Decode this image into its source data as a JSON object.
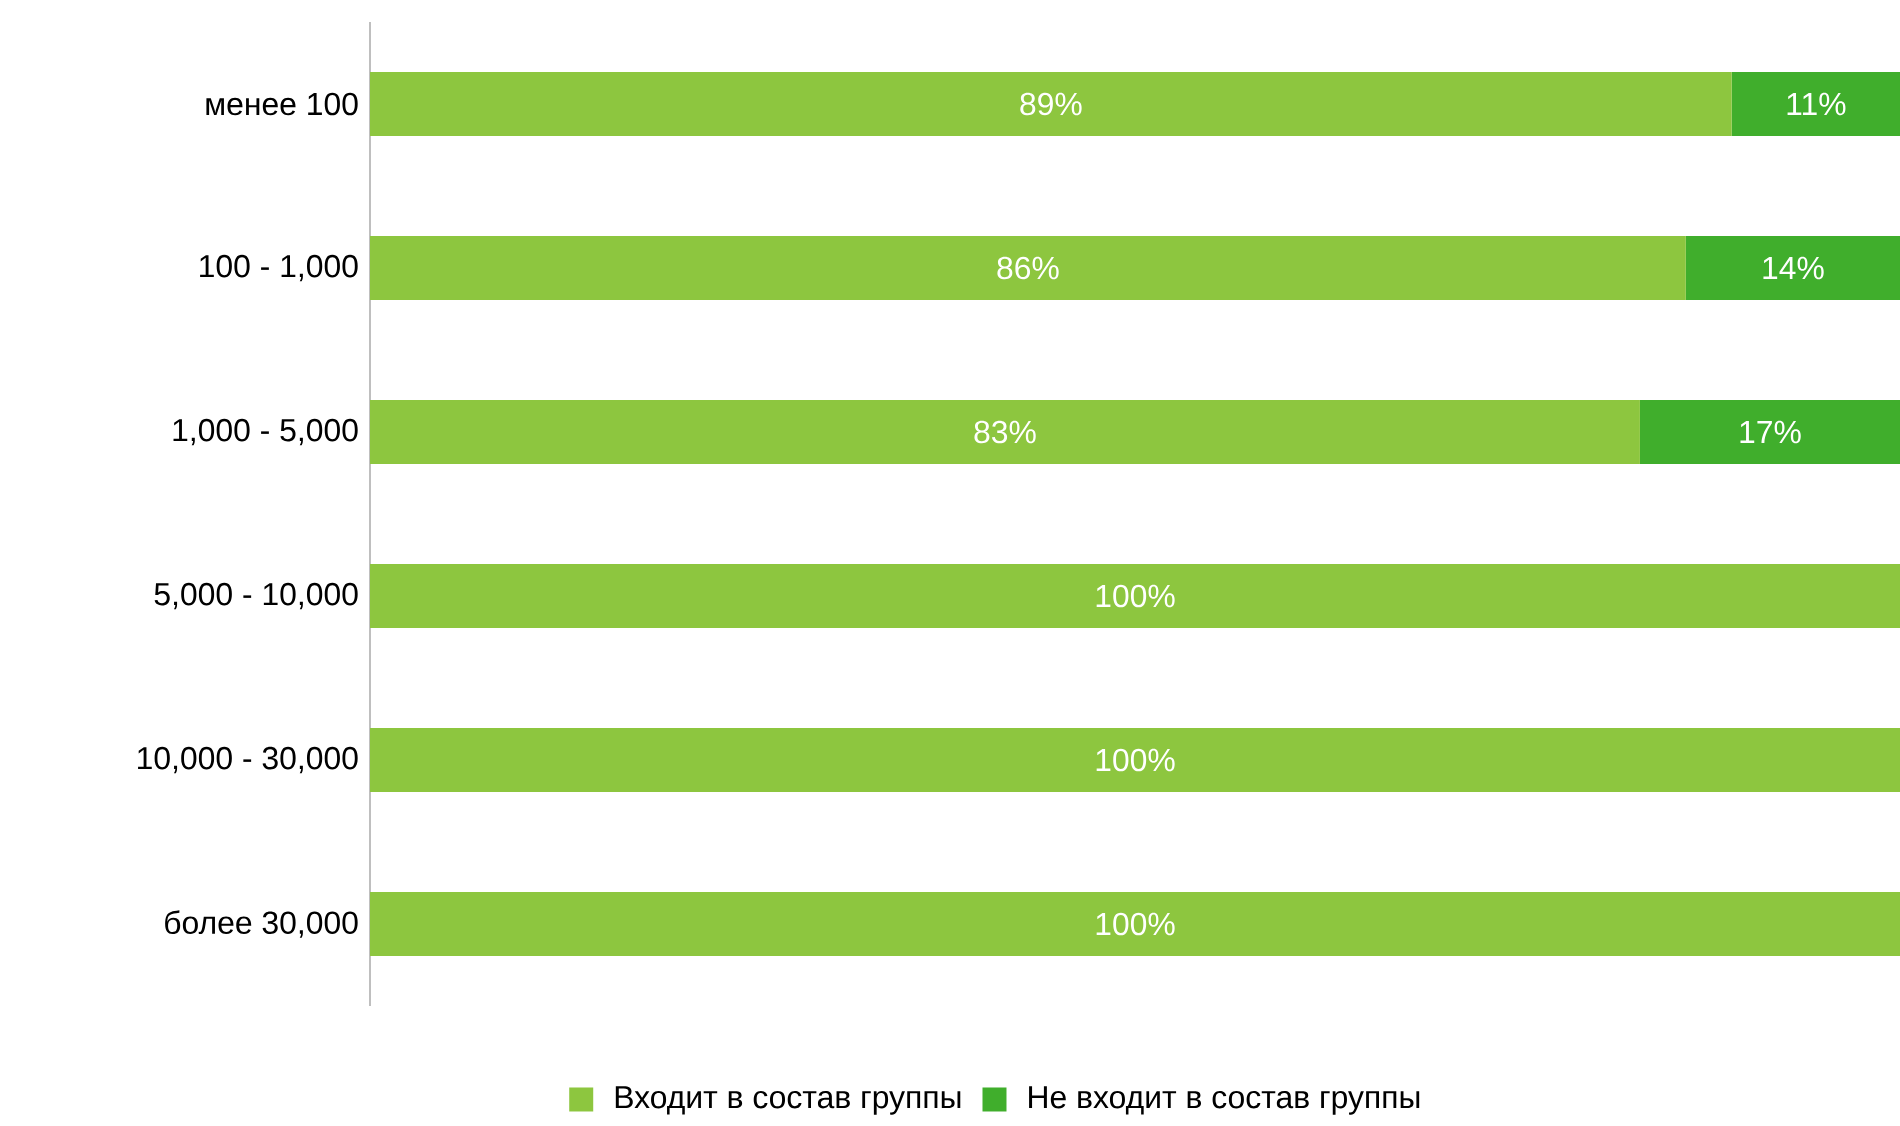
{
  "chart_data": {
    "type": "bar",
    "orientation": "horizontal",
    "stacked": true,
    "legend": "bottom",
    "categories": [
      "менее 100",
      "100 - 1,000",
      "1,000 - 5,000",
      "5,000 - 10,000",
      "10,000 - 30,000",
      "более 30,000"
    ],
    "xlim": [
      0,
      100
    ],
    "tick_labels": "y",
    "series": [
      {
        "name": "Входит в состав группы",
        "color": "#8dc63f",
        "values": [
          89,
          86,
          83,
          100,
          100,
          100
        ],
        "value_labels": [
          "89%",
          "86%",
          "83%",
          "100%",
          "100%",
          "100%"
        ]
      },
      {
        "name": "Не входит в состав группы",
        "color": "#40ae2c",
        "values": [
          11,
          14,
          17,
          null,
          null,
          null
        ],
        "value_labels": [
          "11%",
          "14%",
          "17%",
          null,
          null,
          null
        ]
      }
    ]
  }
}
